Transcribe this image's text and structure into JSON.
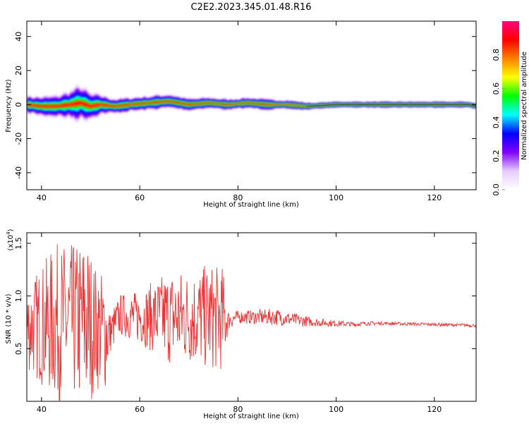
{
  "title": "C2E2.2023.345.01.48.R16",
  "chart_data": [
    {
      "type": "heatmap",
      "xlabel": "Height of straight line (km)",
      "ylabel": "Frequency (Hz)",
      "xlim": [
        37,
        128.5
      ],
      "ylim": [
        -50,
        49
      ],
      "xticks": [
        40,
        60,
        80,
        100,
        120
      ],
      "yticks": [
        -40,
        -20,
        0,
        20,
        40
      ],
      "xtick_labels": [
        "40",
        "60",
        "80",
        "100",
        "120"
      ],
      "ytick_labels": [
        "-40",
        "-20",
        "0",
        "20",
        "40"
      ],
      "colorbar": {
        "label": "Normalized spectral amplitude",
        "range": [
          0,
          1
        ],
        "ticks": [
          0.0,
          0.2,
          0.4,
          0.6,
          0.8
        ],
        "tick_labels": [
          "0.0",
          "0.2",
          "0.4",
          "0.6",
          "0.8"
        ],
        "colormap": [
          "#ffffff",
          "#e6ccff",
          "#8000ff",
          "#0000ff",
          "#00ffff",
          "#00ff00",
          "#ffff00",
          "#ff8000",
          "#ff0000",
          "#ff0080"
        ]
      },
      "ridge": {
        "x": [
          37,
          40,
          43,
          46,
          48,
          50,
          52,
          55,
          58,
          62,
          66,
          70,
          74,
          78,
          82,
          86,
          90,
          94,
          100,
          110,
          120,
          127,
          128.5
        ],
        "y": [
          0,
          -1,
          -1,
          0,
          1,
          -1,
          0,
          -1,
          0,
          1,
          2,
          0,
          1,
          0,
          1,
          0,
          0,
          -1,
          0,
          0,
          0,
          0,
          -1
        ]
      },
      "spread_hz": {
        "x": [
          37,
          43,
          46,
          48,
          50,
          53,
          56,
          60,
          66,
          72,
          78,
          84,
          90,
          94,
          96,
          128.5
        ],
        "y": [
          5,
          6,
          8,
          10,
          7,
          5,
          4,
          4,
          4,
          3,
          3,
          3,
          2.5,
          2,
          1.5,
          1.5
        ]
      }
    },
    {
      "type": "line",
      "xlabel": "Height of straight line (km)",
      "ylabel": "SNR (10 * v/v)",
      "y_multiplier": "(x10",
      "y_multiplier_exp": "4",
      "y_multiplier_close": ")",
      "xlim": [
        37,
        128.5
      ],
      "ylim": [
        0,
        1.6
      ],
      "xticks": [
        40,
        60,
        80,
        100,
        120
      ],
      "yticks": [
        0.5,
        1.0,
        1.5
      ],
      "xtick_labels": [
        "40",
        "60",
        "80",
        "100",
        "120"
      ],
      "ytick_labels": [
        "0.5",
        "1.0",
        "1.5"
      ],
      "color": "#ee3333",
      "envelope": {
        "x": [
          37,
          43,
          47,
          49,
          51,
          53,
          54,
          56,
          60,
          66,
          70,
          74,
          77,
          78,
          80,
          84,
          88,
          92,
          96,
          100,
          104,
          106,
          110,
          128.5
        ],
        "center": [
          0.7,
          0.75,
          0.75,
          0.75,
          0.7,
          0.65,
          0.65,
          0.82,
          0.8,
          0.8,
          0.8,
          0.8,
          0.78,
          0.77,
          0.8,
          0.8,
          0.8,
          0.77,
          0.75,
          0.74,
          0.73,
          0.74,
          0.74,
          0.72
        ],
        "amplitude": [
          0.4,
          0.75,
          0.75,
          0.85,
          0.6,
          0.55,
          0.2,
          0.2,
          0.25,
          0.45,
          0.45,
          0.5,
          0.5,
          0.1,
          0.06,
          0.07,
          0.08,
          0.06,
          0.04,
          0.03,
          0.02,
          0.02,
          0.015,
          0.015
        ]
      }
    }
  ]
}
